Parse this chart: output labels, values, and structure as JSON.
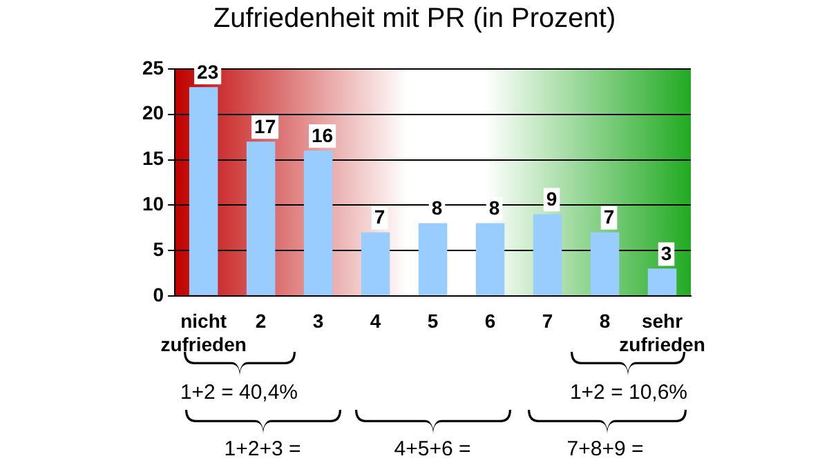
{
  "chart_data": {
    "type": "bar",
    "title": "Zufriedenheit mit PR (in Prozent)",
    "categories": [
      "nicht zufrieden",
      "2",
      "3",
      "4",
      "5",
      "6",
      "7",
      "8",
      "sehr zufrieden"
    ],
    "values": [
      23,
      17,
      16,
      7,
      8,
      8,
      9,
      7,
      3
    ],
    "color": "#99ccff",
    "ylim": [
      0,
      25
    ],
    "yticks": [
      0,
      5,
      10,
      15,
      20,
      25
    ],
    "grid": "y",
    "data_labels": true,
    "legend": false,
    "annotations": [
      "1+2 = 40,4%",
      "1+2 = 10,6%",
      "1+2+3 =",
      "4+5+6 =",
      "7+8+9 ="
    ]
  }
}
